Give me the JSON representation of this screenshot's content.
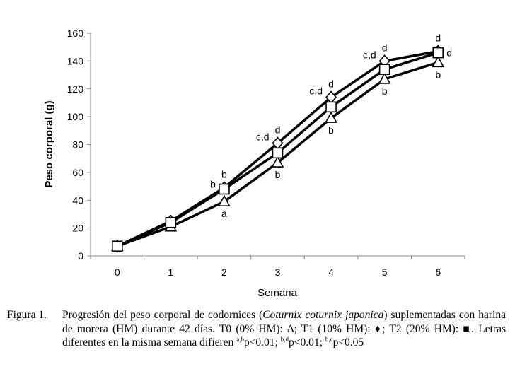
{
  "chart_data": {
    "type": "line",
    "xlabel": "Semana",
    "ylabel": "Peso corporal (g)",
    "x": [
      0,
      1,
      2,
      3,
      4,
      5,
      6
    ],
    "xticks": [
      "0",
      "1",
      "2",
      "3",
      "4",
      "5",
      "6"
    ],
    "yticks": [
      "0",
      "20",
      "40",
      "60",
      "80",
      "100",
      "120",
      "140",
      "160"
    ],
    "xlim": [
      -0.5,
      6.5
    ],
    "ylim": [
      0,
      160
    ],
    "grid": false,
    "series": [
      {
        "name": "T0 (0% HM)",
        "marker": "triangle",
        "values": [
          7,
          21,
          39,
          67,
          99,
          127,
          139
        ]
      },
      {
        "name": "T1 (10% HM)",
        "marker": "diamond",
        "values": [
          7,
          25,
          49,
          81,
          114,
          140,
          147
        ]
      },
      {
        "name": "T2 (20% HM)",
        "marker": "square",
        "values": [
          7,
          24,
          48,
          74,
          107,
          134,
          146
        ]
      }
    ],
    "annotations": [
      {
        "text": "b",
        "x": 2,
        "y": 49,
        "pos": "above"
      },
      {
        "text": "b",
        "x": 2,
        "y": 48,
        "pos": "left"
      },
      {
        "text": "a",
        "x": 2,
        "y": 39,
        "pos": "below"
      },
      {
        "text": "d",
        "x": 3,
        "y": 81,
        "pos": "above"
      },
      {
        "text": "c,d",
        "x": 3,
        "y": 81,
        "pos": "upper-left"
      },
      {
        "text": "b",
        "x": 3,
        "y": 67,
        "pos": "below"
      },
      {
        "text": "d",
        "x": 4,
        "y": 114,
        "pos": "above"
      },
      {
        "text": "c,d",
        "x": 4,
        "y": 114,
        "pos": "upper-left"
      },
      {
        "text": "b",
        "x": 4,
        "y": 99,
        "pos": "below"
      },
      {
        "text": "d",
        "x": 5,
        "y": 140,
        "pos": "above"
      },
      {
        "text": "c,d",
        "x": 5,
        "y": 140,
        "pos": "upper-left"
      },
      {
        "text": "b",
        "x": 5,
        "y": 127,
        "pos": "below"
      },
      {
        "text": "d",
        "x": 6,
        "y": 147,
        "pos": "above"
      },
      {
        "text": "d",
        "x": 6,
        "y": 146,
        "pos": "right"
      },
      {
        "text": "b",
        "x": 6,
        "y": 139,
        "pos": "below"
      }
    ]
  },
  "caption": {
    "label": "Figura 1.",
    "text_1": "Progresión del peso corporal de codornices (",
    "species": "Coturnix coturnix japonica",
    "text_2": ") suplementadas con harina de morera (HM) durante 42 días. T0 (0% HM): ∆; T1 (10% HM): ♦; T2 (20% HM): ■. Letras diferentes en la misma semana difieren ",
    "sup_1": "a,b",
    "text_3": "p<0.01; ",
    "sup_2": "b,d",
    "text_4": "p<0.01; ",
    "sup_3": "b,c",
    "text_5": "p<0.05"
  }
}
